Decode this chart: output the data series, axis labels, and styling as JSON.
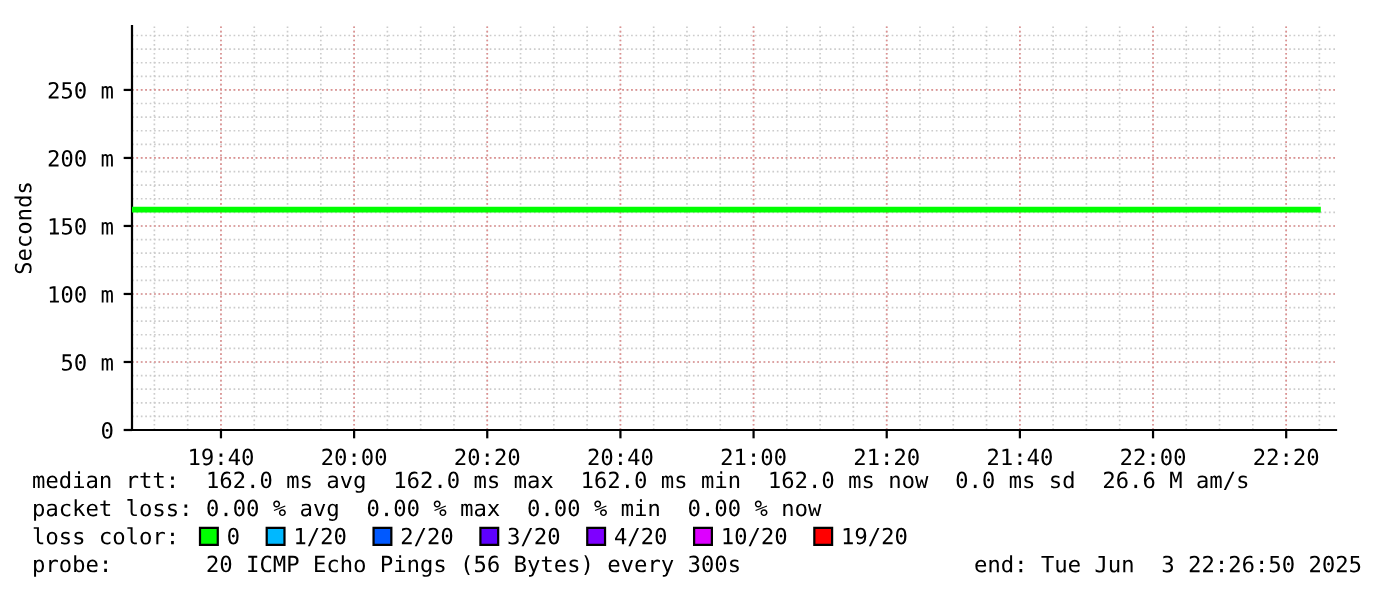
{
  "chart_data": {
    "type": "line",
    "ylabel": "Seconds",
    "x": [
      19.444,
      22.413
    ],
    "series": [
      {
        "name": "0",
        "color": "#00ff00",
        "values": [
          162,
          162
        ]
      },
      {
        "name": "1/20",
        "color": "#00b8ff",
        "values": [
          null,
          null
        ]
      },
      {
        "name": "2/20",
        "color": "#0059ff",
        "values": [
          null,
          null
        ]
      },
      {
        "name": "3/20",
        "color": "#5e00ff",
        "values": [
          null,
          null
        ]
      },
      {
        "name": "4/20",
        "color": "#7e00ff",
        "values": [
          null,
          null
        ]
      },
      {
        "name": "10/20",
        "color": "#dd00ff",
        "values": [
          null,
          null
        ]
      },
      {
        "name": "19/20",
        "color": "#ff0000",
        "values": [
          null,
          null
        ]
      }
    ],
    "legend_title": "loss color:",
    "legend": "bottom",
    "xlim": [
      19.444,
      22.458
    ],
    "xticks": [
      {
        "value": 19.6667,
        "label": "19:40"
      },
      {
        "value": 20,
        "label": "20:00"
      },
      {
        "value": 20.3333,
        "label": "20:20"
      },
      {
        "value": 20.6667,
        "label": "20:40"
      },
      {
        "value": 21,
        "label": "21:00"
      },
      {
        "value": 21.3333,
        "label": "21:20"
      },
      {
        "value": 21.6667,
        "label": "21:40"
      },
      {
        "value": 22,
        "label": "22:00"
      },
      {
        "value": 22.3333,
        "label": "22:20"
      }
    ],
    "ylim": [
      0,
      297
    ],
    "yticks": [
      0,
      {
        "value": 50,
        "label": "50 m"
      },
      {
        "value": 100,
        "label": "100 m"
      },
      {
        "value": 150,
        "label": "150 m"
      },
      {
        "value": 200,
        "label": "200 m"
      },
      {
        "value": 250,
        "label": "250 m"
      }
    ],
    "grid": true,
    "marker": "none",
    "line_style": "solid",
    "annotations": [
      "median rtt:  162.0 ms avg  162.0 ms max  162.0 ms min  162.0 ms now  0.0 ms sd  26.6 M am/s",
      "packet loss: 0.00 % avg  0.00 % max  0.00 % min  0.00 % now",
      "probe:       20 ICMP Echo Pings (56 Bytes) every 300s",
      "end: Tue Jun  3 22:26:50 2025"
    ]
  }
}
